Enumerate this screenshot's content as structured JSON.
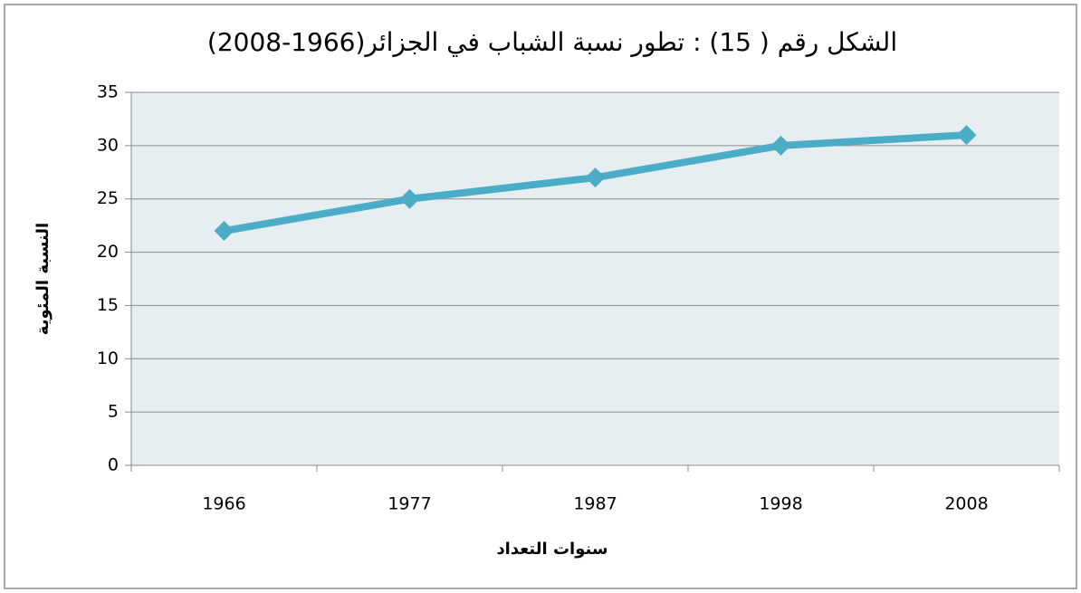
{
  "chart_data": {
    "type": "line",
    "title": "الشكل رقم ( 15) : تطور نسبة الشباب في الجزائر(1966-2008)",
    "x_label": "سنوات التعداد",
    "y_label": "النسبة المئوية",
    "categories": [
      "1966",
      "1977",
      "1987",
      "1998",
      "2008"
    ],
    "values": [
      22,
      25,
      27,
      30,
      31
    ],
    "color": "#4bacc6",
    "ylim": [
      0,
      35
    ],
    "yticks": [
      0,
      5,
      10,
      15,
      20,
      25,
      30,
      35
    ],
    "grid": true
  }
}
